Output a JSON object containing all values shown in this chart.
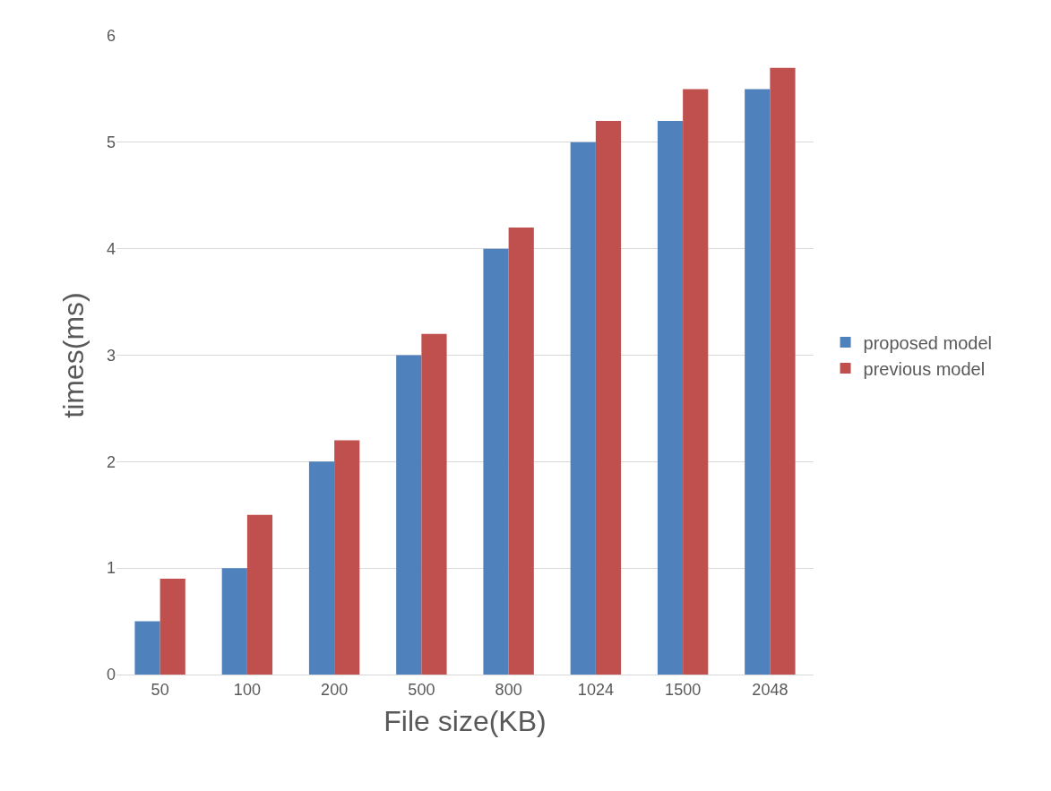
{
  "chart_data": {
    "type": "bar",
    "xlabel": "File size(KB)",
    "ylabel": "times(ms)",
    "categories": [
      "50",
      "100",
      "200",
      "500",
      "800",
      "1024",
      "1500",
      "2048"
    ],
    "series": [
      {
        "name": "proposed model",
        "color": "#4f81bd",
        "values": [
          0.5,
          1,
          2,
          3,
          4,
          5,
          5.2,
          5.5
        ]
      },
      {
        "name": "previous model",
        "color": "#c0504d",
        "values": [
          0.9,
          1.5,
          2.2,
          3.2,
          4.2,
          5.2,
          5.5,
          5.7
        ]
      }
    ],
    "ylim": [
      0,
      6
    ],
    "yticks": [
      0,
      1,
      2,
      3,
      4,
      5,
      6
    ],
    "grid": "y",
    "legend": "right"
  }
}
